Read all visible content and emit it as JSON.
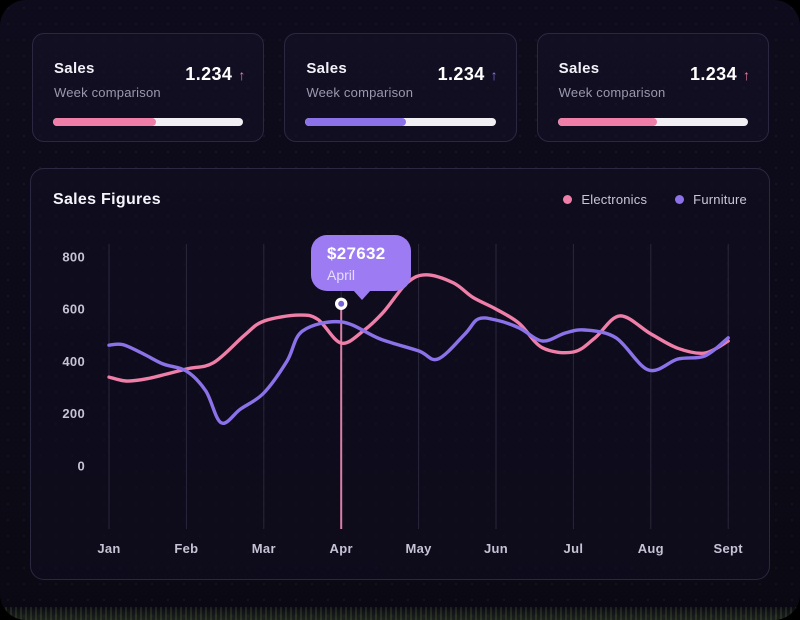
{
  "stat_cards": [
    {
      "title": "Sales",
      "subtitle": "Week comparison",
      "value": "1.234",
      "trend_glyph": "↑",
      "trend": "up",
      "accent": "#ef7fa9",
      "progress_pct": 54
    },
    {
      "title": "Sales",
      "subtitle": "Week comparison",
      "value": "1.234",
      "trend_glyph": "↑",
      "trend": "up",
      "accent": "#8b72e9",
      "progress_pct": 53
    },
    {
      "title": "Sales",
      "subtitle": "Week comparison",
      "value": "1.234",
      "trend_glyph": "↑",
      "trend": "up",
      "accent": "#ef7fa9",
      "progress_pct": 52
    }
  ],
  "chart": {
    "title": "Sales Figures"
  },
  "chart_data": {
    "type": "line",
    "title": "Sales Figures",
    "categories": [
      "Jan",
      "Feb",
      "Mar",
      "Apr",
      "May",
      "Jun",
      "Jul",
      "Aug",
      "Sept"
    ],
    "yticks": [
      0,
      200,
      400,
      600,
      800
    ],
    "ylim": [
      0,
      800
    ],
    "grid": "vertical",
    "legend_position": "top-right",
    "series": [
      {
        "name": "Electronics",
        "color": "#ef7fa9",
        "monthly_values": [
          344,
          371,
          554,
          470,
          727,
          600,
          436,
          505,
          478
        ],
        "points": [
          [
            0,
            340
          ],
          [
            0.22,
            325
          ],
          [
            0.5,
            334
          ],
          [
            1,
            371
          ],
          [
            1.35,
            395
          ],
          [
            1.75,
            500
          ],
          [
            2,
            554
          ],
          [
            2.45,
            577
          ],
          [
            2.7,
            560
          ],
          [
            3,
            470
          ],
          [
            3.3,
            520
          ],
          [
            3.55,
            590
          ],
          [
            3.85,
            700
          ],
          [
            4.1,
            731
          ],
          [
            4.45,
            700
          ],
          [
            4.7,
            645
          ],
          [
            5,
            600
          ],
          [
            5.3,
            545
          ],
          [
            5.6,
            452
          ],
          [
            6,
            436
          ],
          [
            6.28,
            490
          ],
          [
            6.6,
            574
          ],
          [
            7,
            505
          ],
          [
            7.35,
            450
          ],
          [
            7.7,
            432
          ],
          [
            8,
            478
          ]
        ]
      },
      {
        "name": "Furniture",
        "color": "#8b72e9",
        "monthly_values": [
          459,
          363,
          279,
          551,
          440,
          558,
          510,
          367,
          490
        ],
        "points": [
          [
            0,
            462
          ],
          [
            0.18,
            464
          ],
          [
            0.45,
            428
          ],
          [
            0.7,
            390
          ],
          [
            1,
            363
          ],
          [
            1.25,
            287
          ],
          [
            1.45,
            165
          ],
          [
            1.7,
            218
          ],
          [
            2,
            279
          ],
          [
            2.3,
            401
          ],
          [
            2.5,
            516
          ],
          [
            3,
            551
          ],
          [
            3.5,
            486
          ],
          [
            4,
            440
          ],
          [
            4.25,
            409
          ],
          [
            4.6,
            505
          ],
          [
            4.77,
            562
          ],
          [
            5,
            558
          ],
          [
            5.3,
            528
          ],
          [
            5.6,
            478
          ],
          [
            5.9,
            509
          ],
          [
            6.15,
            520
          ],
          [
            6.55,
            490
          ],
          [
            6.97,
            367
          ],
          [
            7.35,
            409
          ],
          [
            7.7,
            421
          ],
          [
            8,
            490
          ]
        ]
      }
    ],
    "highlight": {
      "month": "April",
      "month_index": 3,
      "value_label": "$27632",
      "marker_value": 620,
      "tooltip_bg": "#9d7cf3",
      "marker_fill": "#7a61da",
      "marker_line_color": "#ee8ab4"
    }
  }
}
